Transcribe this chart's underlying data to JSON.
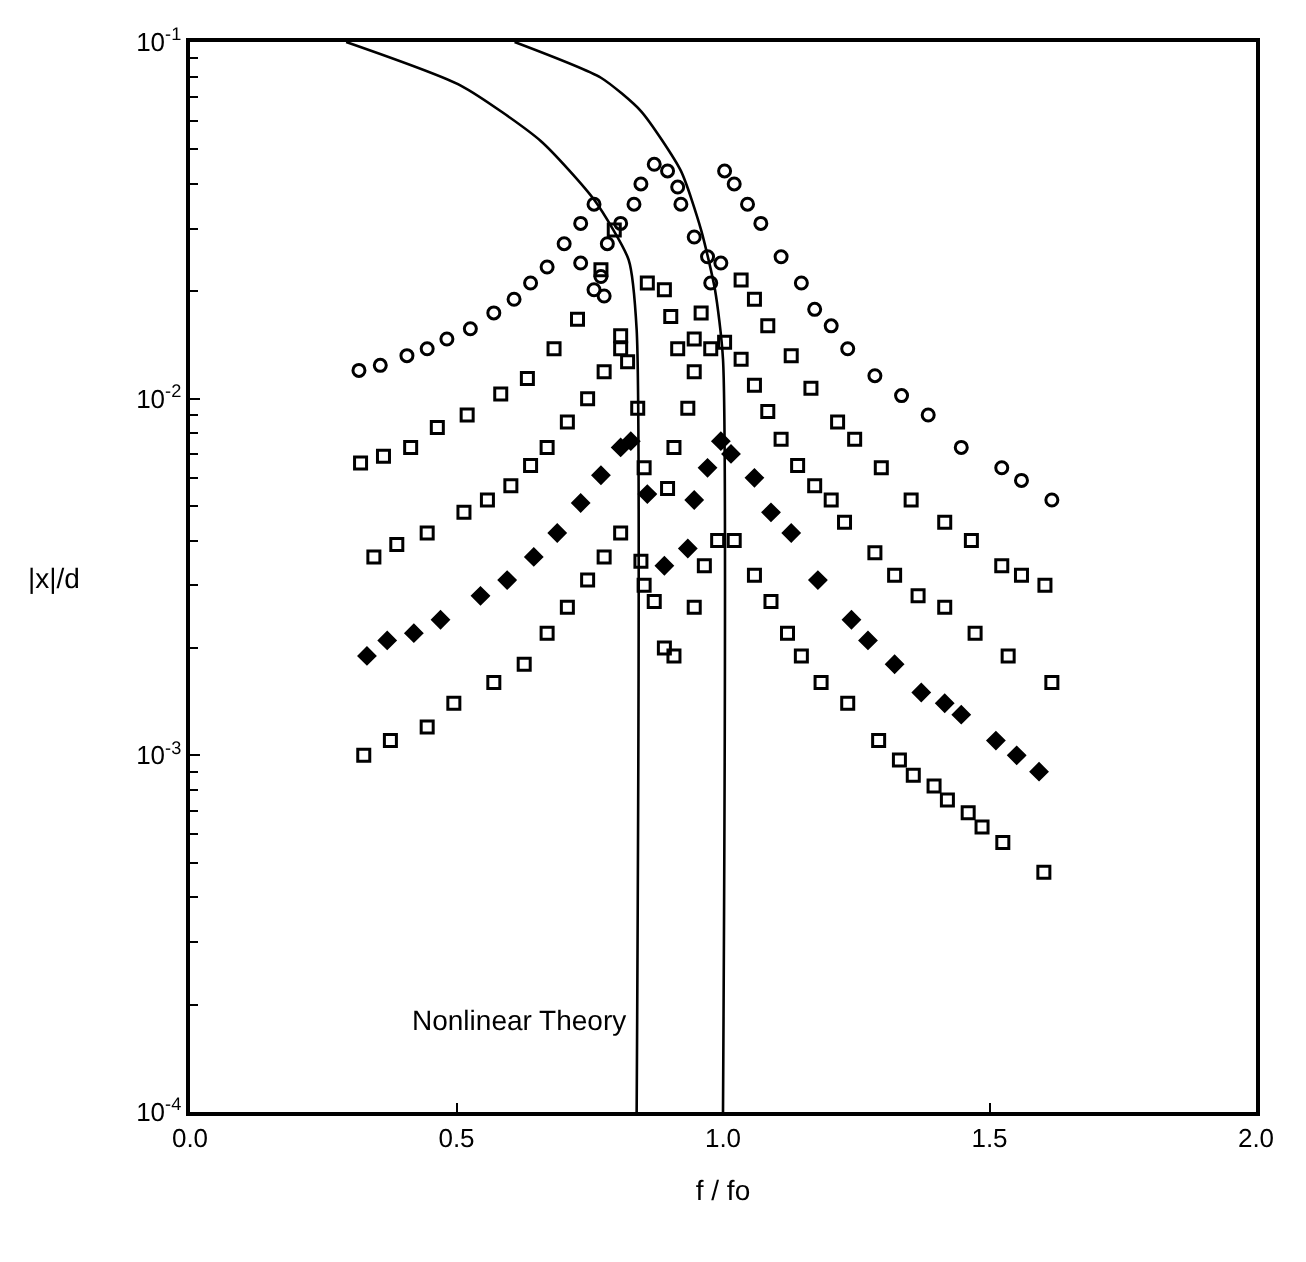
{
  "chart_data": {
    "type": "scatter",
    "xlabel": "f / fo",
    "ylabel": "|x|/d",
    "log": "y",
    "xlim": [
      0,
      2
    ],
    "xticks": [
      {
        "value": 0,
        "label": "0.0"
      },
      {
        "value": 0.5,
        "label": "0.5"
      },
      {
        "value": 1,
        "label": "1.0"
      },
      {
        "value": 1.5,
        "label": "1.5"
      },
      {
        "value": 2,
        "label": "2.0"
      }
    ],
    "ylim": [
      0.0001,
      0.1
    ],
    "yticks": [
      {
        "value": 0.1,
        "label": "10$^{-1}$"
      },
      {
        "value": 0.01,
        "label": "10$^{-2}$"
      },
      {
        "value": 0.001,
        "label": "10$^{-3}$"
      },
      {
        "value": 0.0001,
        "label": "10$^{-4}$"
      }
    ],
    "annotations": [
      {
        "text": "Nonlinear Theory",
        "x": 0.838,
        "y": 0.00018
      }
    ],
    "series": [
      {
        "marker": "circle",
        "color": "#000000",
        "x": [
          0.317,
          0.357,
          0.407,
          0.445,
          0.482,
          0.526,
          0.57,
          0.608,
          0.639,
          0.67,
          0.702,
          0.733,
          0.758,
          0.733,
          0.758,
          0.777,
          0.771,
          0.783,
          0.808,
          0.833,
          0.846,
          0.871,
          0.896,
          0.915,
          0.921,
          0.946,
          0.971,
          0.977,
          0.996,
          1.003,
          1.021,
          1.046,
          1.071,
          1.109,
          1.147,
          1.172,
          1.203,
          1.234,
          1.285,
          1.335,
          1.385,
          1.447,
          1.523,
          1.56,
          1.617
        ],
        "values": [
          0.012,
          0.0124,
          0.0132,
          0.0138,
          0.0147,
          0.0157,
          0.0174,
          0.019,
          0.0211,
          0.0234,
          0.0272,
          0.031,
          0.0351,
          0.024,
          0.0202,
          0.0194,
          0.022,
          0.0272,
          0.031,
          0.0351,
          0.04,
          0.0454,
          0.0435,
          0.0392,
          0.0351,
          0.0284,
          0.025,
          0.0211,
          0.024,
          0.0435,
          0.04,
          0.0351,
          0.031,
          0.025,
          0.0211,
          0.0178,
          0.016,
          0.0138,
          0.0116,
          0.0102,
          0.009,
          0.0073,
          0.0064,
          0.0059,
          0.0052
        ]
      },
      {
        "marker": "square",
        "color": "#000000",
        "x": [
          0.32,
          0.363,
          0.414,
          0.464,
          0.52,
          0.583,
          0.633,
          0.683,
          0.727,
          0.771,
          0.796,
          0.808,
          0.821,
          0.858,
          0.89,
          0.902,
          0.915,
          0.959,
          0.946,
          1.034,
          1.059,
          1.084,
          1.128,
          1.165,
          1.215,
          1.247,
          1.297,
          1.353,
          1.416,
          1.466,
          1.523,
          1.56,
          1.604
        ],
        "values": [
          0.0066,
          0.0069,
          0.0073,
          0.0083,
          0.009,
          0.0103,
          0.0114,
          0.0138,
          0.0167,
          0.023,
          0.0297,
          0.015,
          0.0127,
          0.0211,
          0.0202,
          0.017,
          0.0138,
          0.0174,
          0.0147,
          0.0215,
          0.019,
          0.016,
          0.0132,
          0.0107,
          0.0086,
          0.0077,
          0.0064,
          0.0052,
          0.0045,
          0.004,
          0.0034,
          0.0032,
          0.003
        ]
      },
      {
        "marker": "square",
        "color": "#000000",
        "x": [
          0.345,
          0.388,
          0.445,
          0.514,
          0.558,
          0.602,
          0.639,
          0.67,
          0.708,
          0.746,
          0.777,
          0.808,
          0.84,
          0.852,
          0.896,
          0.908,
          0.934,
          0.946,
          0.977,
          1.003,
          1.034,
          1.059,
          1.084,
          1.109,
          1.14,
          1.172,
          1.203,
          1.228,
          1.285,
          1.322,
          1.366,
          1.416,
          1.473,
          1.535,
          1.617
        ],
        "values": [
          0.0036,
          0.0039,
          0.0042,
          0.0048,
          0.0052,
          0.0057,
          0.0065,
          0.0073,
          0.0086,
          0.01,
          0.0119,
          0.0138,
          0.0094,
          0.0064,
          0.0056,
          0.0073,
          0.0094,
          0.0119,
          0.0138,
          0.0144,
          0.0129,
          0.0109,
          0.0092,
          0.0077,
          0.0065,
          0.0057,
          0.0052,
          0.0045,
          0.0037,
          0.0032,
          0.0028,
          0.0026,
          0.0022,
          0.0019,
          0.0016
        ]
      },
      {
        "marker": "diamond",
        "color": "#000000",
        "x": [
          0.332,
          0.37,
          0.42,
          0.47,
          0.545,
          0.595,
          0.645,
          0.689,
          0.733,
          0.771,
          0.808,
          0.827,
          0.858,
          0.89,
          0.934,
          0.946,
          0.971,
          0.996,
          1.015,
          1.059,
          1.09,
          1.128,
          1.178,
          1.241,
          1.272,
          1.322,
          1.372,
          1.416,
          1.447,
          1.512,
          1.551,
          1.593
        ],
        "values": [
          0.0019,
          0.0021,
          0.0022,
          0.0024,
          0.0028,
          0.0031,
          0.0036,
          0.0042,
          0.0051,
          0.0061,
          0.0073,
          0.0076,
          0.0054,
          0.0034,
          0.0038,
          0.0052,
          0.0064,
          0.0076,
          0.007,
          0.006,
          0.0048,
          0.0042,
          0.0031,
          0.0024,
          0.0021,
          0.0018,
          0.0015,
          0.0014,
          0.0013,
          0.0011,
          0.001,
          0.0009
        ]
      },
      {
        "marker": "square",
        "color": "#000000",
        "x": [
          0.326,
          0.376,
          0.445,
          0.495,
          0.57,
          0.627,
          0.67,
          0.708,
          0.746,
          0.777,
          0.808,
          0.846,
          0.852,
          0.871,
          0.89,
          0.908,
          0.946,
          0.965,
          0.99,
          1.021,
          1.059,
          1.09,
          1.121,
          1.147,
          1.184,
          1.234,
          1.292,
          1.331,
          1.357,
          1.396,
          1.421,
          1.46,
          1.486,
          1.525,
          1.602
        ],
        "values": [
          0.001,
          0.0011,
          0.0012,
          0.0014,
          0.0016,
          0.0018,
          0.0022,
          0.0026,
          0.0031,
          0.0036,
          0.0042,
          0.0035,
          0.003,
          0.0027,
          0.002,
          0.0019,
          0.0026,
          0.0034,
          0.004,
          0.004,
          0.0032,
          0.0027,
          0.0022,
          0.0019,
          0.0016,
          0.0014,
          0.0011,
          0.00097,
          0.00088,
          0.00082,
          0.00075,
          0.00069,
          0.00063,
          0.00057,
          0.00047
        ]
      },
      {
        "type": "line",
        "marker": "none",
        "line_style": "solid",
        "color": "#000000",
        "x": [
          0.293,
          0.508,
          0.658,
          0.759,
          0.823,
          0.838,
          0.838
        ],
        "values": [
          0.1,
          0.0755,
          0.0528,
          0.036,
          0.0245,
          0.0156,
          0.0001
        ]
      },
      {
        "type": "line",
        "marker": "none",
        "line_style": "solid",
        "color": "#000000",
        "x": [
          0.609,
          0.771,
          0.846,
          0.921,
          0.959,
          0.985,
          1.0,
          1.0
        ],
        "values": [
          0.1,
          0.0794,
          0.064,
          0.0435,
          0.0297,
          0.0202,
          0.0129,
          0.0001
        ]
      }
    ]
  }
}
